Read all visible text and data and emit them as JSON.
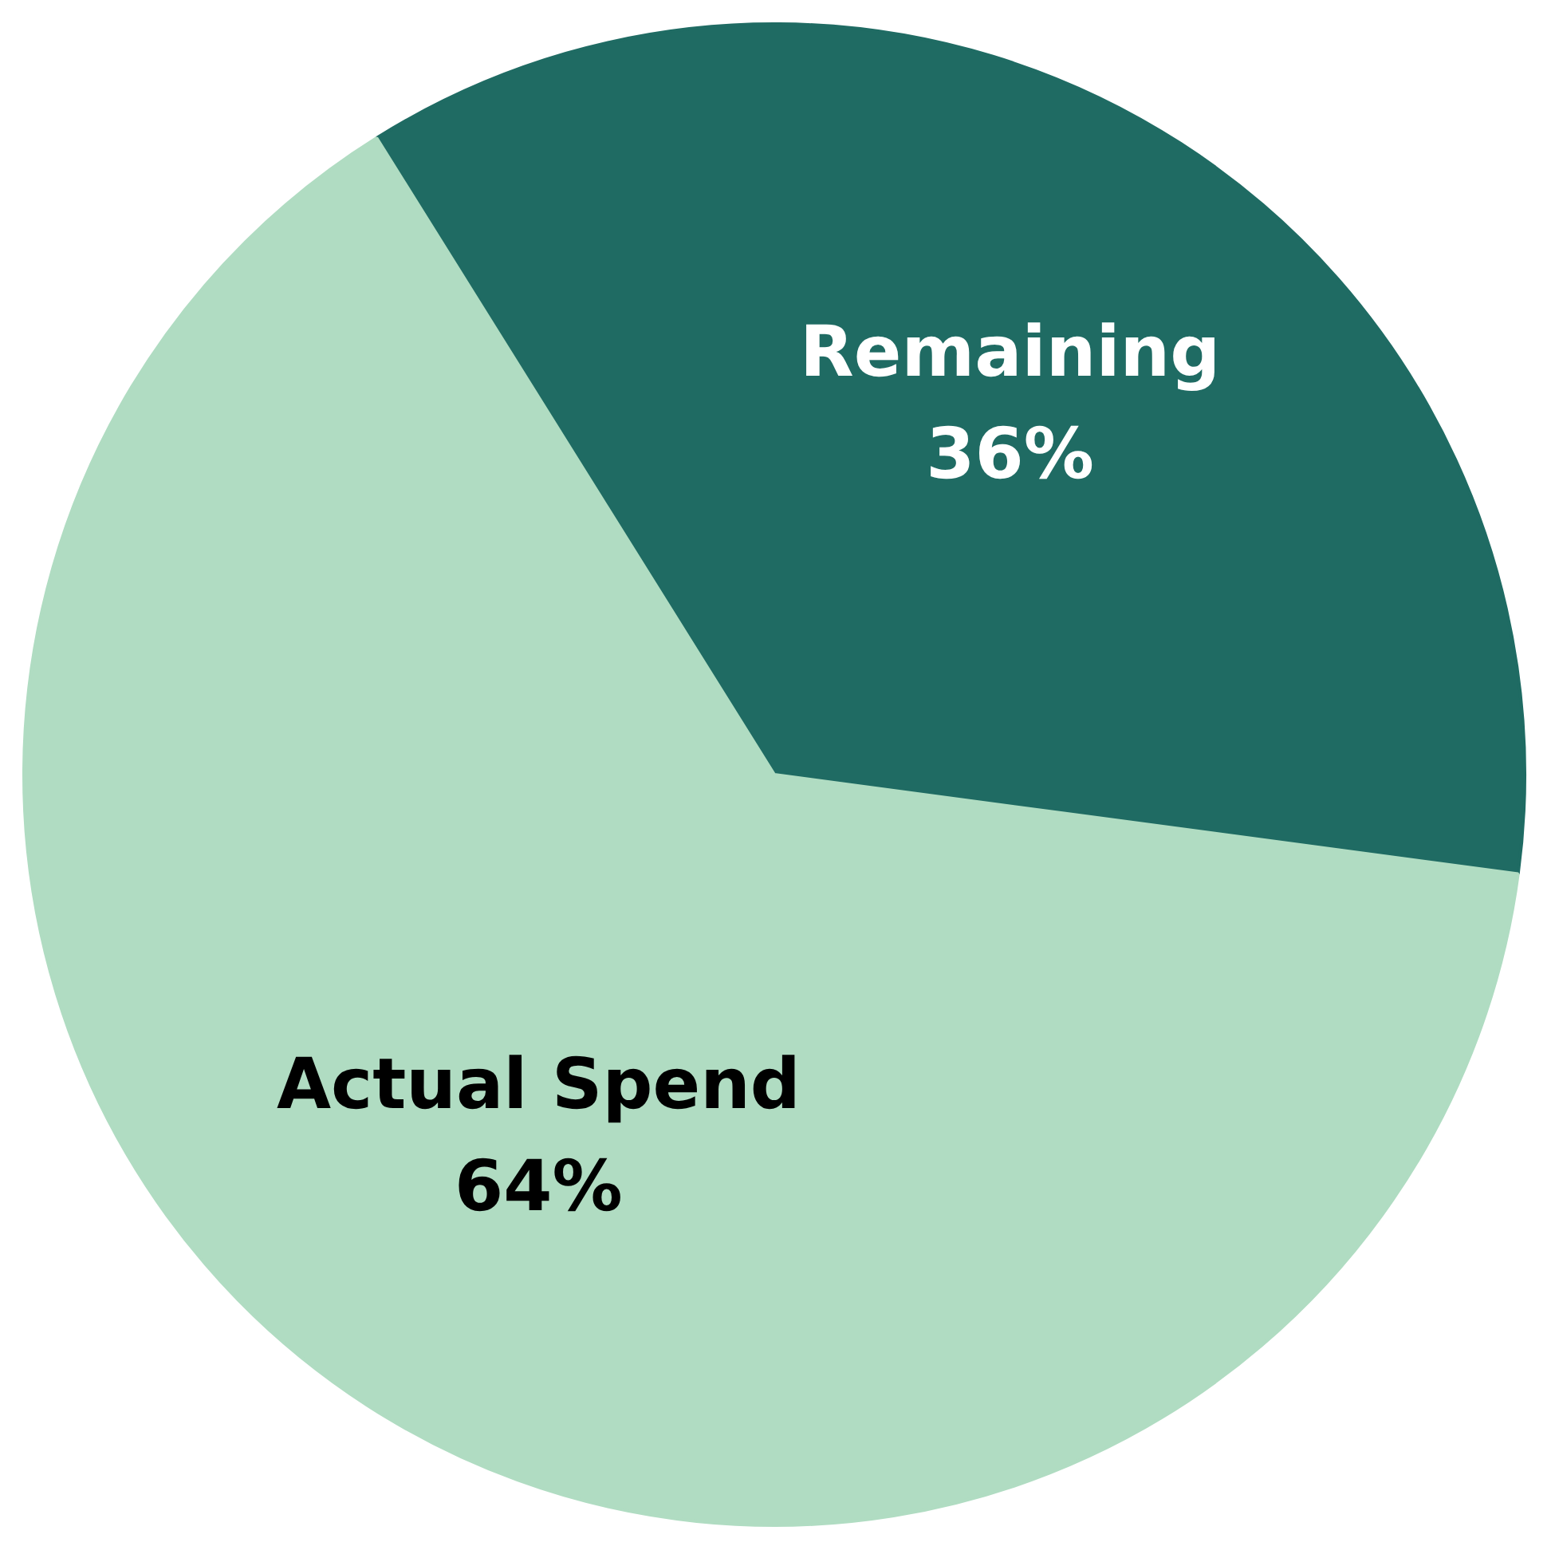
{
  "chart_data": {
    "type": "pie",
    "categories": [
      "Remaining",
      "Actual Spend"
    ],
    "values": [
      36,
      64
    ],
    "colors": [
      "#1f6b63",
      "#b0dcc2"
    ],
    "value_labels": [
      "36%",
      "64%"
    ],
    "legend": false
  }
}
